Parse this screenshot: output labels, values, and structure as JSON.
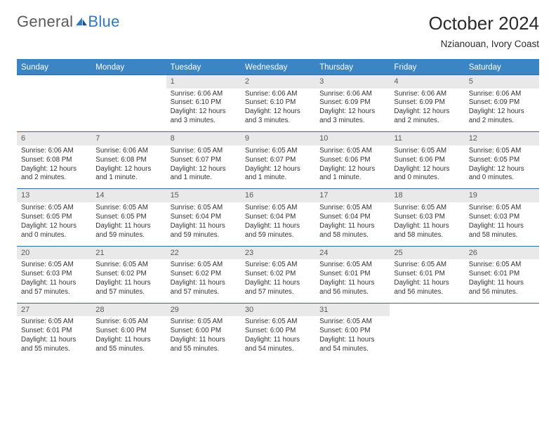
{
  "brand": {
    "part1": "General",
    "part2": "Blue"
  },
  "title": "October 2024",
  "subtitle": "Nzianouan, Ivory Coast",
  "colors": {
    "header_bg": "#3b85c5",
    "row_border": "#2f6a9e",
    "daynum_bg": "#e9e9e9",
    "text": "#333333",
    "brand_gray": "#5a5a5a",
    "brand_blue": "#2f7abf"
  },
  "dayHeaders": [
    "Sunday",
    "Monday",
    "Tuesday",
    "Wednesday",
    "Thursday",
    "Friday",
    "Saturday"
  ],
  "weeks": [
    [
      {
        "n": "",
        "lines": []
      },
      {
        "n": "",
        "lines": []
      },
      {
        "n": "1",
        "lines": [
          "Sunrise: 6:06 AM",
          "Sunset: 6:10 PM",
          "Daylight: 12 hours",
          "and 3 minutes."
        ]
      },
      {
        "n": "2",
        "lines": [
          "Sunrise: 6:06 AM",
          "Sunset: 6:10 PM",
          "Daylight: 12 hours",
          "and 3 minutes."
        ]
      },
      {
        "n": "3",
        "lines": [
          "Sunrise: 6:06 AM",
          "Sunset: 6:09 PM",
          "Daylight: 12 hours",
          "and 3 minutes."
        ]
      },
      {
        "n": "4",
        "lines": [
          "Sunrise: 6:06 AM",
          "Sunset: 6:09 PM",
          "Daylight: 12 hours",
          "and 2 minutes."
        ]
      },
      {
        "n": "5",
        "lines": [
          "Sunrise: 6:06 AM",
          "Sunset: 6:09 PM",
          "Daylight: 12 hours",
          "and 2 minutes."
        ]
      }
    ],
    [
      {
        "n": "6",
        "lines": [
          "Sunrise: 6:06 AM",
          "Sunset: 6:08 PM",
          "Daylight: 12 hours",
          "and 2 minutes."
        ]
      },
      {
        "n": "7",
        "lines": [
          "Sunrise: 6:06 AM",
          "Sunset: 6:08 PM",
          "Daylight: 12 hours",
          "and 1 minute."
        ]
      },
      {
        "n": "8",
        "lines": [
          "Sunrise: 6:05 AM",
          "Sunset: 6:07 PM",
          "Daylight: 12 hours",
          "and 1 minute."
        ]
      },
      {
        "n": "9",
        "lines": [
          "Sunrise: 6:05 AM",
          "Sunset: 6:07 PM",
          "Daylight: 12 hours",
          "and 1 minute."
        ]
      },
      {
        "n": "10",
        "lines": [
          "Sunrise: 6:05 AM",
          "Sunset: 6:06 PM",
          "Daylight: 12 hours",
          "and 1 minute."
        ]
      },
      {
        "n": "11",
        "lines": [
          "Sunrise: 6:05 AM",
          "Sunset: 6:06 PM",
          "Daylight: 12 hours",
          "and 0 minutes."
        ]
      },
      {
        "n": "12",
        "lines": [
          "Sunrise: 6:05 AM",
          "Sunset: 6:05 PM",
          "Daylight: 12 hours",
          "and 0 minutes."
        ]
      }
    ],
    [
      {
        "n": "13",
        "lines": [
          "Sunrise: 6:05 AM",
          "Sunset: 6:05 PM",
          "Daylight: 12 hours",
          "and 0 minutes."
        ]
      },
      {
        "n": "14",
        "lines": [
          "Sunrise: 6:05 AM",
          "Sunset: 6:05 PM",
          "Daylight: 11 hours",
          "and 59 minutes."
        ]
      },
      {
        "n": "15",
        "lines": [
          "Sunrise: 6:05 AM",
          "Sunset: 6:04 PM",
          "Daylight: 11 hours",
          "and 59 minutes."
        ]
      },
      {
        "n": "16",
        "lines": [
          "Sunrise: 6:05 AM",
          "Sunset: 6:04 PM",
          "Daylight: 11 hours",
          "and 59 minutes."
        ]
      },
      {
        "n": "17",
        "lines": [
          "Sunrise: 6:05 AM",
          "Sunset: 6:04 PM",
          "Daylight: 11 hours",
          "and 58 minutes."
        ]
      },
      {
        "n": "18",
        "lines": [
          "Sunrise: 6:05 AM",
          "Sunset: 6:03 PM",
          "Daylight: 11 hours",
          "and 58 minutes."
        ]
      },
      {
        "n": "19",
        "lines": [
          "Sunrise: 6:05 AM",
          "Sunset: 6:03 PM",
          "Daylight: 11 hours",
          "and 58 minutes."
        ]
      }
    ],
    [
      {
        "n": "20",
        "lines": [
          "Sunrise: 6:05 AM",
          "Sunset: 6:03 PM",
          "Daylight: 11 hours",
          "and 57 minutes."
        ]
      },
      {
        "n": "21",
        "lines": [
          "Sunrise: 6:05 AM",
          "Sunset: 6:02 PM",
          "Daylight: 11 hours",
          "and 57 minutes."
        ]
      },
      {
        "n": "22",
        "lines": [
          "Sunrise: 6:05 AM",
          "Sunset: 6:02 PM",
          "Daylight: 11 hours",
          "and 57 minutes."
        ]
      },
      {
        "n": "23",
        "lines": [
          "Sunrise: 6:05 AM",
          "Sunset: 6:02 PM",
          "Daylight: 11 hours",
          "and 57 minutes."
        ]
      },
      {
        "n": "24",
        "lines": [
          "Sunrise: 6:05 AM",
          "Sunset: 6:01 PM",
          "Daylight: 11 hours",
          "and 56 minutes."
        ]
      },
      {
        "n": "25",
        "lines": [
          "Sunrise: 6:05 AM",
          "Sunset: 6:01 PM",
          "Daylight: 11 hours",
          "and 56 minutes."
        ]
      },
      {
        "n": "26",
        "lines": [
          "Sunrise: 6:05 AM",
          "Sunset: 6:01 PM",
          "Daylight: 11 hours",
          "and 56 minutes."
        ]
      }
    ],
    [
      {
        "n": "27",
        "lines": [
          "Sunrise: 6:05 AM",
          "Sunset: 6:01 PM",
          "Daylight: 11 hours",
          "and 55 minutes."
        ]
      },
      {
        "n": "28",
        "lines": [
          "Sunrise: 6:05 AM",
          "Sunset: 6:00 PM",
          "Daylight: 11 hours",
          "and 55 minutes."
        ]
      },
      {
        "n": "29",
        "lines": [
          "Sunrise: 6:05 AM",
          "Sunset: 6:00 PM",
          "Daylight: 11 hours",
          "and 55 minutes."
        ]
      },
      {
        "n": "30",
        "lines": [
          "Sunrise: 6:05 AM",
          "Sunset: 6:00 PM",
          "Daylight: 11 hours",
          "and 54 minutes."
        ]
      },
      {
        "n": "31",
        "lines": [
          "Sunrise: 6:05 AM",
          "Sunset: 6:00 PM",
          "Daylight: 11 hours",
          "and 54 minutes."
        ]
      },
      {
        "n": "",
        "lines": []
      },
      {
        "n": "",
        "lines": []
      }
    ]
  ]
}
